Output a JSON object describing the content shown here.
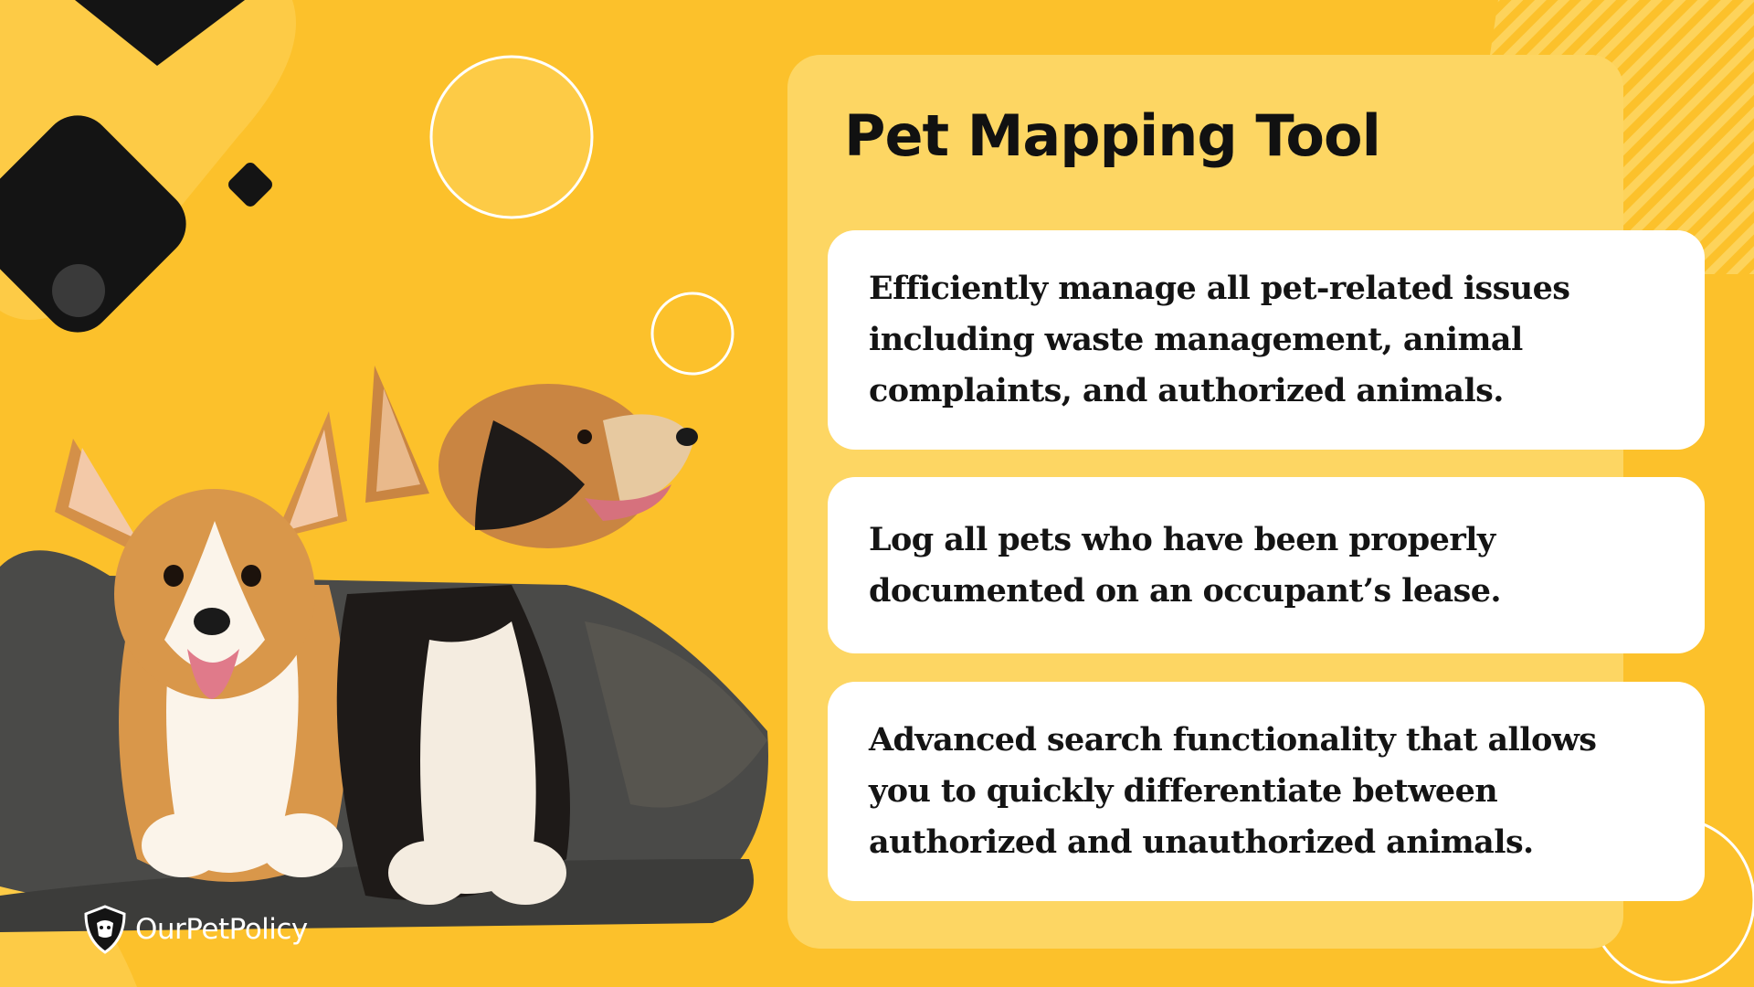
{
  "slide": {
    "title": "Pet Mapping Tool",
    "features": [
      "Efficiently manage all pet-related issues including waste management, animal complaints, and authorized animals.",
      "Log all pets who have been properly documented on an occupant’s lease.",
      "Advanced search functionality that allows you to quickly differentiate between authorized and unauthorized animals."
    ]
  },
  "brand": {
    "name": "OurPetPolicy",
    "icon": "shield-dog-icon"
  },
  "image": {
    "subject": "two-corgi-dogs-in-pet-bed"
  },
  "colors": {
    "background": "#FCC12B",
    "panel": "#FDD663",
    "card": "#FFFFFF",
    "text": "#141414",
    "shape_dark": "#141414"
  }
}
